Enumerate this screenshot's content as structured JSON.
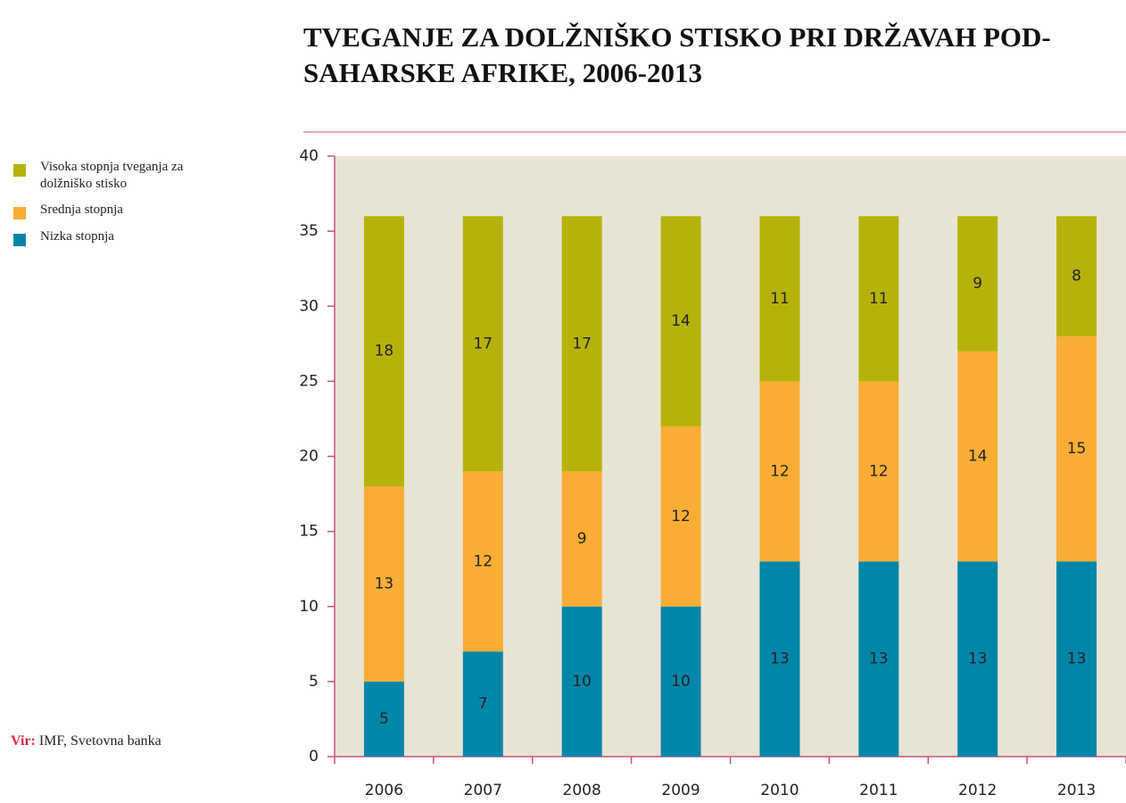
{
  "chart_data": {
    "type": "stacked_bar",
    "title": "TVEGANJE ZA DOLŽNIŠKO STISKO PRI DRŽAVAH POD-SAHARSKE AFRIKE, 2006-2013",
    "categories": [
      "2006",
      "2007",
      "2008",
      "2009",
      "2010",
      "2011",
      "2012",
      "2013"
    ],
    "series": [
      {
        "name": "Nizka stopnja",
        "color": "#0086a8",
        "values": [
          5,
          7,
          10,
          10,
          13,
          13,
          13,
          13
        ]
      },
      {
        "name": "Srednja stopnja",
        "color": "#f9ad35",
        "values": [
          13,
          12,
          9,
          12,
          12,
          12,
          14,
          15
        ]
      },
      {
        "name": "Visoka stopnja tveganja za dolžniško stisko",
        "color": "#b5b30a",
        "values": [
          18,
          17,
          17,
          14,
          11,
          11,
          9,
          8
        ]
      }
    ],
    "ylim": [
      0,
      40
    ],
    "yticks": [
      0,
      5,
      10,
      15,
      20,
      25,
      30,
      35,
      40
    ],
    "source_label": "Vir:",
    "source": "IMF, Svetovna banka"
  }
}
